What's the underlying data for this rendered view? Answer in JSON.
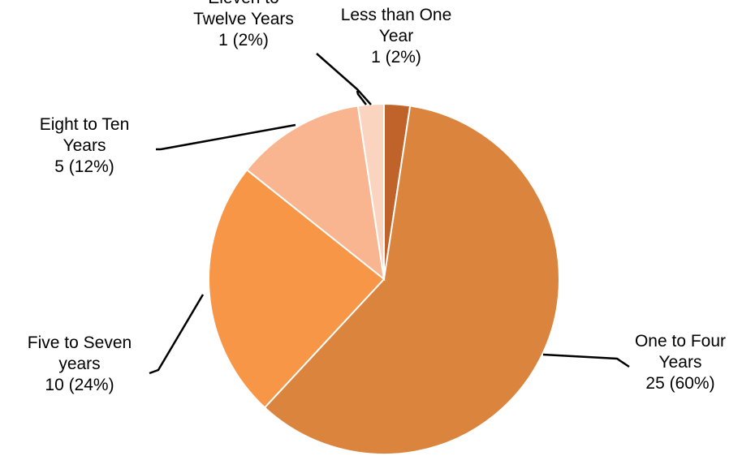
{
  "chart_data": {
    "type": "pie",
    "title": "",
    "slices": [
      {
        "label_lines": [
          "Less than One",
          "Year"
        ],
        "value": 1,
        "percent_text": "1 (2%)",
        "color": "#c0632a"
      },
      {
        "label_lines": [
          "One to Four",
          "Years"
        ],
        "value": 25,
        "percent_text": "25 (60%)",
        "color": "#db843d"
      },
      {
        "label_lines": [
          "Five to Seven",
          "years"
        ],
        "value": 10,
        "percent_text": "10 (24%)",
        "color": "#f79646"
      },
      {
        "label_lines": [
          "Eight to Ten",
          "Years"
        ],
        "value": 5,
        "percent_text": "5 (12%)",
        "color": "#f9b590"
      },
      {
        "label_lines": [
          "Eleven to",
          "Twelve Years"
        ],
        "value": 1,
        "percent_text": "1 (2%)",
        "color": "#fbd4c0"
      }
    ],
    "legend": "none",
    "start_angle": "12 o'clock",
    "direction": "clockwise"
  }
}
